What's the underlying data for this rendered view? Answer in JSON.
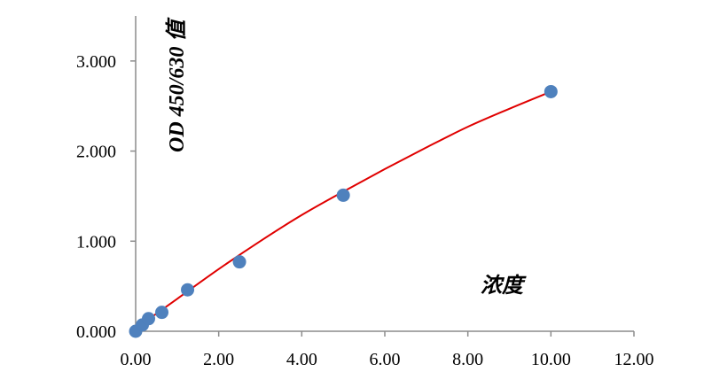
{
  "chart_data": {
    "type": "scatter",
    "title": "",
    "xlabel": "浓度",
    "ylabel": "OD 450/630 值",
    "xlim": [
      0,
      12
    ],
    "ylim": [
      0,
      3.5
    ],
    "x_ticks": [
      "0.00",
      "2.00",
      "4.00",
      "6.00",
      "8.00",
      "10.00",
      "12.00"
    ],
    "x_tick_values": [
      0,
      2,
      4,
      6,
      8,
      10,
      12
    ],
    "y_ticks": [
      "0.000",
      "1.000",
      "2.000",
      "3.000"
    ],
    "y_tick_values": [
      0,
      1,
      2,
      3
    ],
    "grid": false,
    "legend": "none",
    "series": [
      {
        "points": [
          {
            "x": 0.0,
            "y": 0.0
          },
          {
            "x": 0.16,
            "y": 0.07
          },
          {
            "x": 0.31,
            "y": 0.14
          },
          {
            "x": 0.63,
            "y": 0.21
          },
          {
            "x": 1.25,
            "y": 0.46
          },
          {
            "x": 2.5,
            "y": 0.77
          },
          {
            "x": 5.0,
            "y": 1.51
          },
          {
            "x": 10.0,
            "y": 2.66
          }
        ],
        "color": "#4F81BD"
      }
    ],
    "fit_curve": {
      "x": [
        0.0,
        1.0,
        2.0,
        3.0,
        4.0,
        5.0,
        6.0,
        7.0,
        8.0,
        9.0,
        10.0
      ],
      "y": [
        0.03,
        0.36,
        0.69,
        1.0,
        1.29,
        1.55,
        1.8,
        2.04,
        2.27,
        2.47,
        2.66
      ],
      "color": "#E00000"
    }
  }
}
